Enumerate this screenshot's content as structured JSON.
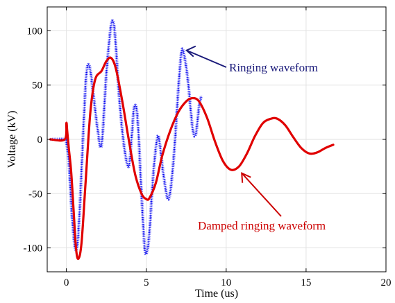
{
  "chart_data": {
    "type": "line",
    "xlabel": "Time (us)",
    "ylabel": "Voltage (kV)",
    "xlim": [
      -1.2,
      20
    ],
    "ylim": [
      -122,
      122
    ],
    "xticks": [
      0,
      5,
      10,
      15,
      20
    ],
    "yticks": [
      -100,
      -50,
      0,
      50,
      100
    ],
    "xtick_labels": [
      "0",
      "5",
      "10",
      "15",
      "20"
    ],
    "ytick_labels": [
      "-100",
      "-50",
      "0",
      "50",
      "100"
    ],
    "grid": true,
    "series": [
      {
        "name": "Ringing waveform",
        "color": "#0000ee",
        "style": "dotted-dense",
        "x": [
          -1.0,
          -0.05,
          0.0,
          0.15,
          0.35,
          0.55,
          0.7,
          0.85,
          1.05,
          1.25,
          1.45,
          1.7,
          1.95,
          2.2,
          2.5,
          2.75,
          2.9,
          3.05,
          3.3,
          3.6,
          3.9,
          4.1,
          4.25,
          4.45,
          4.7,
          4.9,
          5.05,
          5.2,
          5.45,
          5.7,
          5.85,
          6.1,
          6.4,
          6.7,
          7.0,
          7.2,
          7.35,
          7.6,
          7.9,
          8.1,
          8.3,
          8.45
        ],
        "y": [
          0,
          0,
          -3,
          -20,
          -70,
          -100,
          -95,
          -60,
          5,
          60,
          67,
          40,
          10,
          -5,
          60,
          100,
          109,
          95,
          40,
          -5,
          -25,
          5,
          30,
          20,
          -50,
          -100,
          -103,
          -85,
          -30,
          2,
          -5,
          -35,
          -55,
          -20,
          45,
          80,
          79,
          55,
          10,
          5,
          30,
          40
        ]
      },
      {
        "name": "Damped ringing waveform",
        "color": "#e00000",
        "style": "solid-noisy",
        "x": [
          -1.0,
          -0.1,
          0.0,
          0.05,
          0.15,
          0.3,
          0.45,
          0.6,
          0.75,
          0.95,
          1.2,
          1.5,
          1.8,
          2.2,
          2.5,
          2.8,
          3.1,
          3.5,
          3.9,
          4.3,
          4.7,
          5.0,
          5.2,
          5.6,
          6.0,
          6.5,
          7.0,
          7.5,
          7.9,
          8.3,
          8.8,
          9.3,
          9.8,
          10.3,
          10.8,
          11.3,
          11.8,
          12.3,
          12.8,
          13.2,
          13.7,
          14.2,
          14.7,
          15.2,
          15.7,
          16.2,
          16.7
        ],
        "y": [
          0,
          0,
          15,
          8,
          -8,
          -30,
          -65,
          -100,
          -110,
          -95,
          -40,
          25,
          55,
          63,
          72,
          75,
          65,
          35,
          0,
          -32,
          -50,
          -55,
          -54,
          -40,
          -15,
          8,
          25,
          35,
          38,
          35,
          20,
          -2,
          -20,
          -28,
          -25,
          -13,
          3,
          15,
          19,
          19,
          13,
          2,
          -8,
          -13,
          -12,
          -8,
          -5
        ]
      }
    ],
    "annotations": [
      {
        "text": "Ringing waveform",
        "arrow_to": [
          7.35,
          82
        ],
        "color": "#1a1a7a"
      },
      {
        "text": "Damped ringing waveform",
        "arrow_to": [
          10.8,
          -26
        ],
        "color": "#cc0000"
      }
    ]
  }
}
